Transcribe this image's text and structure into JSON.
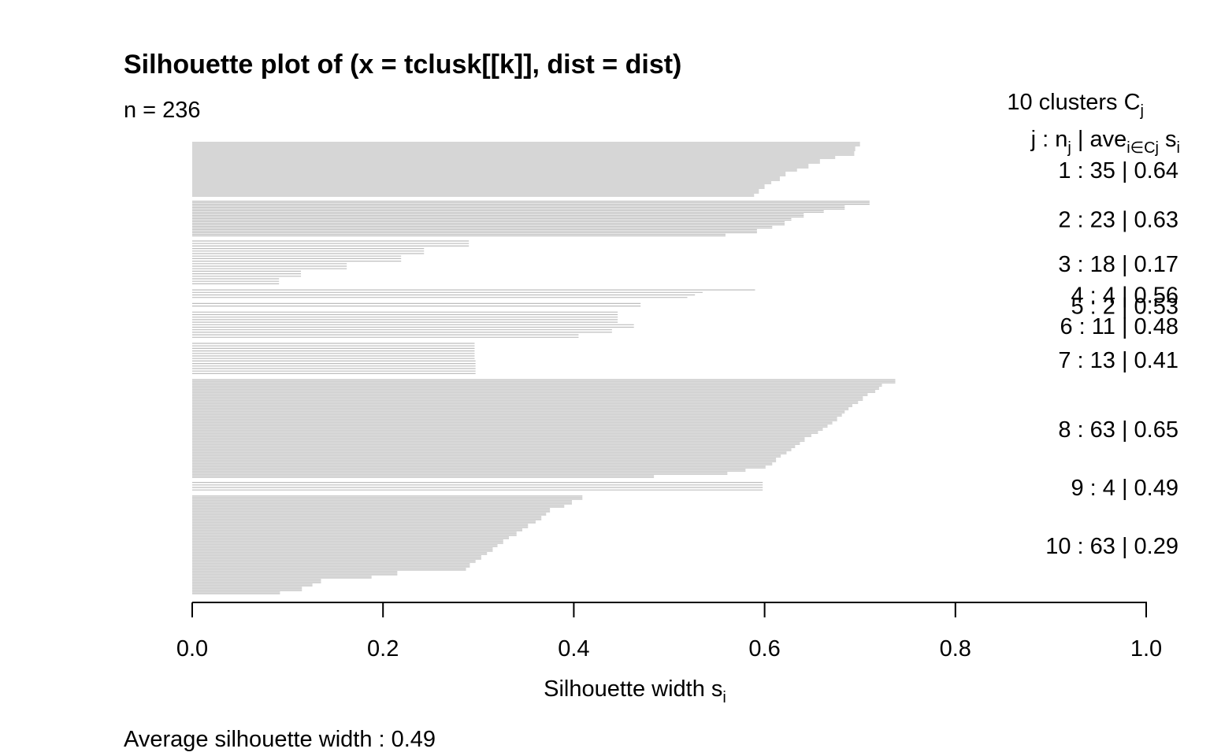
{
  "chart_data": {
    "type": "bar",
    "orientation": "horizontal",
    "title": "Silhouette plot of (x = tclusk[[k]], dist = dist)",
    "subtitle": "n = 236",
    "xlabel": "Silhouette width",
    "xlabel_subscript": "i",
    "xlim": [
      0,
      1
    ],
    "x_ticks": [
      "0.0",
      "0.2",
      "0.4",
      "0.6",
      "0.8",
      "1.0"
    ],
    "bar_color": "#bebebe",
    "footer": "Average silhouette width :  0.49",
    "legend": {
      "header": "10  clusters  C",
      "header_subscript": "j",
      "colhead": "j :  n",
      "colhead_sub1": "j",
      "colhead_mid": " | ave",
      "colhead_sub2": "i∈Cj",
      "colhead_end": "  s",
      "colhead_sub3": "i"
    },
    "clusters": [
      {
        "label": "1 :   35  |  0.64",
        "n": 35,
        "avg": 0.64
      },
      {
        "label": "2 :   23  |  0.63",
        "n": 23,
        "avg": 0.63
      },
      {
        "label": "3 :   18  |  0.17",
        "n": 18,
        "avg": 0.17
      },
      {
        "label": "4 :    4  |  0.56",
        "n": 4,
        "avg": 0.56
      },
      {
        "label": "5 :    2  |  0.53",
        "n": 2,
        "avg": 0.53
      },
      {
        "label": "6 :   11  |  0.48",
        "n": 11,
        "avg": 0.48
      },
      {
        "label": "7 :   13  |  0.41",
        "n": 13,
        "avg": 0.41
      },
      {
        "label": "8 :   63  |  0.65",
        "n": 63,
        "avg": 0.65
      },
      {
        "label": "9 :    4  |  0.49",
        "n": 4,
        "avg": 0.49
      },
      {
        "label": "10 :   63  |  0.29",
        "n": 63,
        "avg": 0.29
      }
    ],
    "bars": [
      {
        "cluster": 1,
        "widths": [
          0.7,
          0.695,
          0.694,
          0.674,
          0.658,
          0.646,
          0.634,
          0.622,
          0.616,
          0.607,
          0.6,
          0.594,
          0.589
        ]
      },
      {
        "cluster": 2,
        "widths": [
          0.71,
          0.684,
          0.662,
          0.641,
          0.628,
          0.621,
          0.608,
          0.592,
          0.559
        ]
      },
      {
        "cluster": 3,
        "widths": [
          0.29,
          0.243,
          0.219,
          0.162,
          0.114,
          0.091
        ]
      },
      {
        "cluster": 4,
        "widths": [
          0.59,
          0.535,
          0.527,
          0.519,
          0.539
        ]
      },
      {
        "cluster": 5,
        "widths": [
          0.47
        ]
      },
      {
        "cluster": 6,
        "widths": [
          0.446,
          0.446,
          0.463,
          0.44,
          0.405
        ]
      },
      {
        "cluster": 7,
        "widths": [
          0.296,
          0.297
        ]
      },
      {
        "cluster": 8,
        "widths": [
          0.737,
          0.723,
          0.72,
          0.716,
          0.708,
          0.703,
          0.698,
          0.692,
          0.688,
          0.684,
          0.681,
          0.676,
          0.671,
          0.666,
          0.661,
          0.656,
          0.649,
          0.642,
          0.637,
          0.632,
          0.628,
          0.623,
          0.617,
          0.612,
          0.608,
          0.601,
          0.58,
          0.561,
          0.484
        ]
      },
      {
        "cluster": 9,
        "widths": [
          0.598
        ]
      },
      {
        "cluster": 10,
        "widths": [
          0.409,
          0.398,
          0.39,
          0.375,
          0.371,
          0.366,
          0.36,
          0.352,
          0.346,
          0.34,
          0.332,
          0.326,
          0.32,
          0.315,
          0.309,
          0.303,
          0.297,
          0.291,
          0.287,
          0.215,
          0.188,
          0.135,
          0.126,
          0.115,
          0.092
        ]
      }
    ]
  }
}
